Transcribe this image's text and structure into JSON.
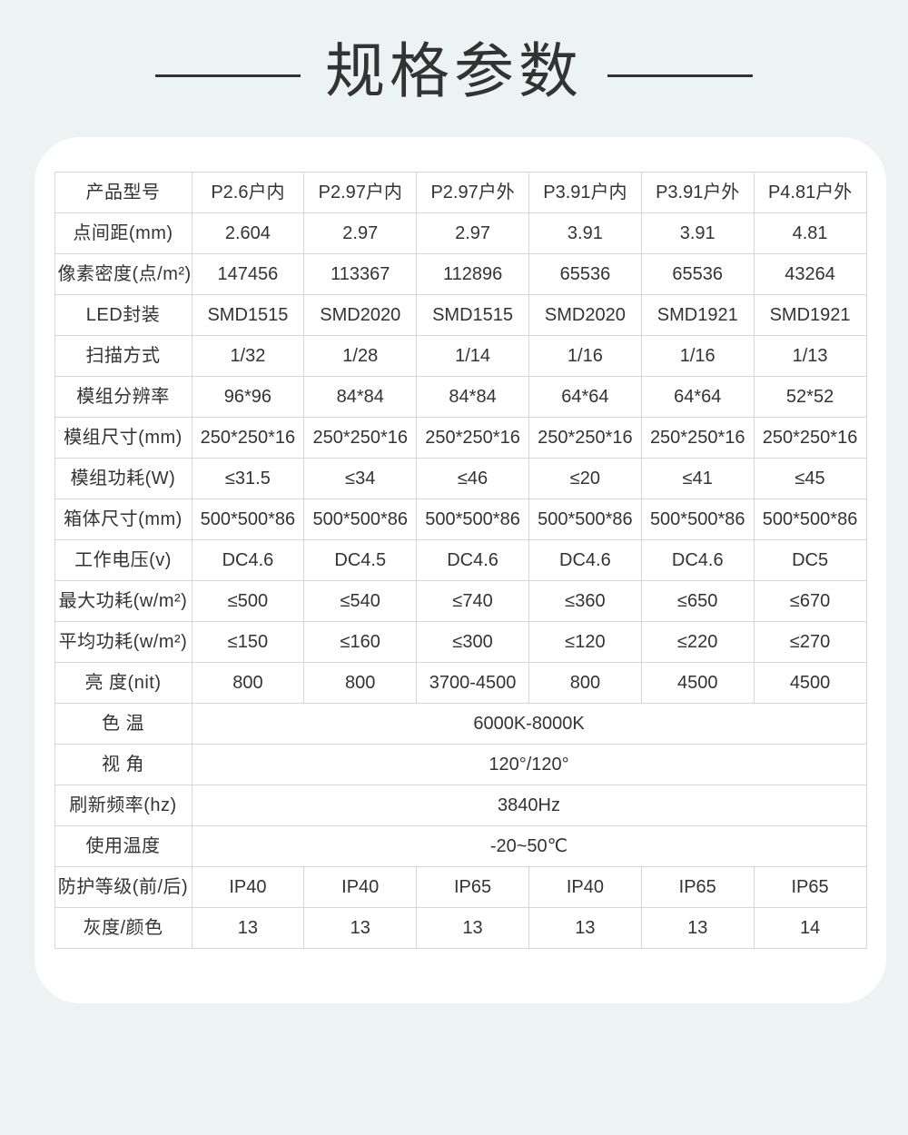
{
  "page": {
    "heading": "规格参数",
    "colors": {
      "background": "#edf3f2",
      "card": "#ffffff",
      "text": "#333333",
      "heading": "#333333",
      "table_border": "#d6d6d6"
    }
  },
  "spec_table": {
    "rows": [
      {
        "label": "产品型号",
        "cells": [
          "P2.6户内",
          "P2.97户内",
          "P2.97户外",
          "P3.91户内",
          "P3.91户外",
          "P4.81户外"
        ]
      },
      {
        "label": "点间距(mm)",
        "cells": [
          "2.604",
          "2.97",
          "2.97",
          "3.91",
          "3.91",
          "4.81"
        ]
      },
      {
        "label": "像素密度(点/m²)",
        "cells": [
          "147456",
          "113367",
          "112896",
          "65536",
          "65536",
          "43264"
        ]
      },
      {
        "label": "LED封装",
        "cells": [
          "SMD1515",
          "SMD2020",
          "SMD1515",
          "SMD2020",
          "SMD1921",
          "SMD1921"
        ]
      },
      {
        "label": "扫描方式",
        "cells": [
          "1/32",
          "1/28",
          "1/14",
          "1/16",
          "1/16",
          "1/13"
        ]
      },
      {
        "label": "模组分辨率",
        "cells": [
          "96*96",
          "84*84",
          "84*84",
          "64*64",
          "64*64",
          "52*52"
        ]
      },
      {
        "label": "模组尺寸(mm)",
        "cells": [
          "250*250*16",
          "250*250*16",
          "250*250*16",
          "250*250*16",
          "250*250*16",
          "250*250*16"
        ]
      },
      {
        "label": "模组功耗(W)",
        "cells": [
          "≤31.5",
          "≤34",
          "≤46",
          "≤20",
          "≤41",
          "≤45"
        ]
      },
      {
        "label": "箱体尺寸(mm)",
        "cells": [
          "500*500*86",
          "500*500*86",
          "500*500*86",
          "500*500*86",
          "500*500*86",
          "500*500*86"
        ]
      },
      {
        "label": "工作电压(v)",
        "cells": [
          "DC4.6",
          "DC4.5",
          "DC4.6",
          "DC4.6",
          "DC4.6",
          "DC5"
        ]
      },
      {
        "label": "最大功耗(w/m²)",
        "cells": [
          "≤500",
          "≤540",
          "≤740",
          "≤360",
          "≤650",
          "≤670"
        ]
      },
      {
        "label": "平均功耗(w/m²)",
        "cells": [
          "≤150",
          "≤160",
          "≤300",
          "≤120",
          "≤220",
          "≤270"
        ]
      },
      {
        "label": "亮 度(nit)",
        "cells": [
          "800",
          "800",
          "3700-4500",
          "800",
          "4500",
          "4500"
        ]
      },
      {
        "label": "色  温",
        "cells": [
          "6000K-8000K"
        ],
        "span": 6
      },
      {
        "label": "视  角",
        "cells": [
          "120°/120°"
        ],
        "span": 6
      },
      {
        "label": "刷新频率(hz)",
        "cells": [
          "3840Hz"
        ],
        "span": 6
      },
      {
        "label": "使用温度",
        "cells": [
          "-20~50℃"
        ],
        "span": 6
      },
      {
        "label": "防护等级(前/后)",
        "cells": [
          "IP40",
          "IP40",
          "IP65",
          "IP40",
          "IP65",
          "IP65"
        ]
      },
      {
        "label": "灰度/颜色",
        "cells": [
          "13",
          "13",
          "13",
          "13",
          "13",
          "14"
        ]
      }
    ]
  }
}
